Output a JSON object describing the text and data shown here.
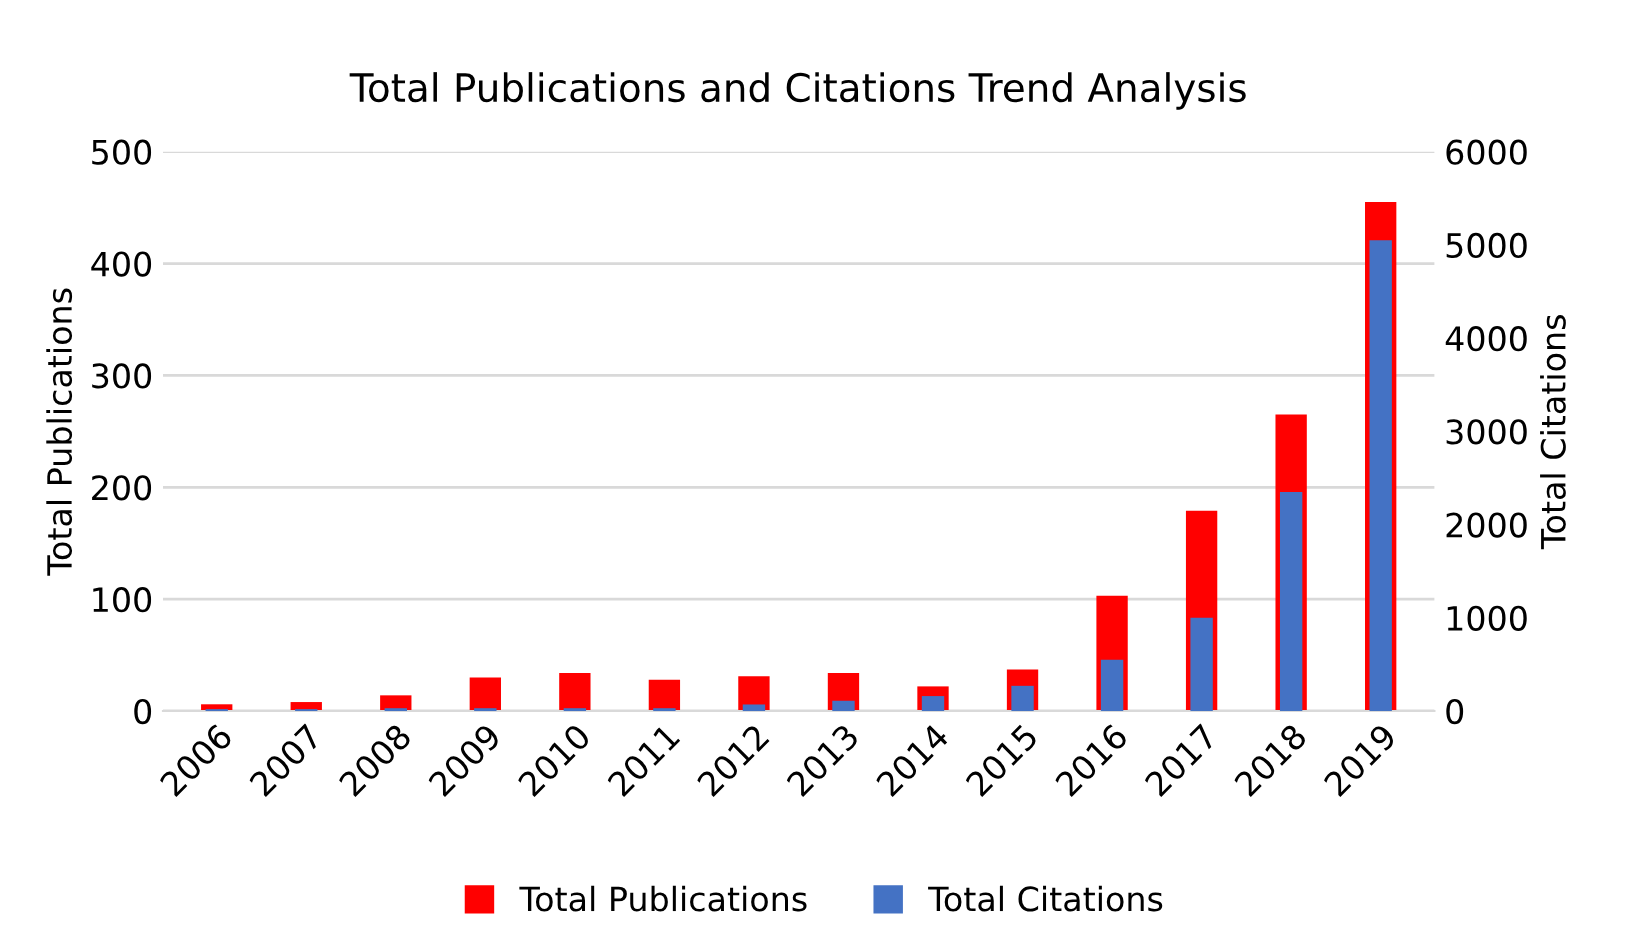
{
  "chart_data": {
    "type": "bar",
    "title": "Total Publications and Citations Trend Analysis",
    "categories": [
      "2006",
      "2007",
      "2008",
      "2009",
      "2010",
      "2011",
      "2012",
      "2013",
      "2014",
      "2015",
      "2016",
      "2017",
      "2018",
      "2019"
    ],
    "series": [
      {
        "name": "Total Publications",
        "color": "#ff0000",
        "values": [
          6,
          8,
          14,
          30,
          34,
          28,
          31,
          34,
          22,
          37,
          103,
          179,
          265,
          455
        ]
      },
      {
        "name": "Total Citations",
        "color": "#4472c4",
        "axis": "y2",
        "values": [
          20,
          20,
          30,
          30,
          30,
          30,
          70,
          110,
          160,
          270,
          550,
          1000,
          2350,
          5050
        ]
      }
    ],
    "ylabel": "Total Publications",
    "y2label": "Total Citations",
    "ylim": [
      0,
      500
    ],
    "yticks": [
      0,
      100,
      200,
      300,
      400,
      500
    ],
    "y2lim": [
      0,
      6000
    ],
    "y2ticks": [
      0,
      1000,
      2000,
      3000,
      4000,
      5000,
      6000
    ],
    "grid": "y",
    "legend": "bottom"
  }
}
